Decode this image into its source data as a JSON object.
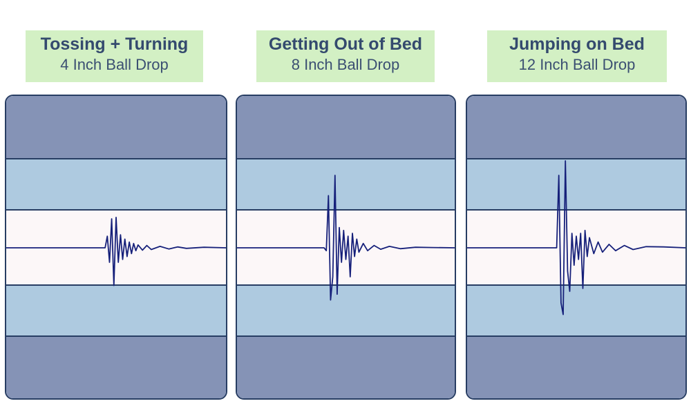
{
  "chart_data": [
    {
      "type": "line",
      "title": "Tossing + Turning",
      "subtitle": "4 Inch Ball Drop",
      "series": [
        {
          "values": [
            [
              0.0,
              0.0
            ],
            [
              0.45,
              0.0
            ],
            [
              0.46,
              0.4
            ],
            [
              0.47,
              -0.5
            ],
            [
              0.48,
              1.0
            ],
            [
              0.49,
              -1.3
            ],
            [
              0.5,
              1.05
            ],
            [
              0.51,
              -0.5
            ],
            [
              0.52,
              0.45
            ],
            [
              0.53,
              -0.4
            ],
            [
              0.54,
              0.3
            ],
            [
              0.55,
              -0.3
            ],
            [
              0.56,
              0.2
            ],
            [
              0.57,
              -0.2
            ],
            [
              0.58,
              0.15
            ],
            [
              0.59,
              -0.1
            ],
            [
              0.6,
              0.1
            ],
            [
              0.62,
              -0.08
            ],
            [
              0.64,
              0.08
            ],
            [
              0.66,
              -0.06
            ],
            [
              0.7,
              0.05
            ],
            [
              0.74,
              -0.04
            ],
            [
              0.78,
              0.03
            ],
            [
              0.82,
              -0.02
            ],
            [
              0.9,
              0.02
            ],
            [
              1.0,
              0.0
            ]
          ]
        }
      ]
    },
    {
      "type": "line",
      "title": "Getting Out of Bed",
      "subtitle": "8 Inch Ball Drop",
      "series": [
        {
          "values": [
            [
              0.0,
              0.0
            ],
            [
              0.4,
              0.0
            ],
            [
              0.41,
              -0.1
            ],
            [
              0.42,
              1.8
            ],
            [
              0.43,
              -1.8
            ],
            [
              0.44,
              -1.0
            ],
            [
              0.45,
              2.5
            ],
            [
              0.46,
              -1.6
            ],
            [
              0.47,
              0.7
            ],
            [
              0.48,
              -0.5
            ],
            [
              0.49,
              0.6
            ],
            [
              0.5,
              -0.4
            ],
            [
              0.51,
              0.4
            ],
            [
              0.52,
              -1.0
            ],
            [
              0.53,
              0.5
            ],
            [
              0.54,
              -0.3
            ],
            [
              0.55,
              0.3
            ],
            [
              0.56,
              -0.15
            ],
            [
              0.58,
              0.15
            ],
            [
              0.6,
              -0.1
            ],
            [
              0.63,
              0.08
            ],
            [
              0.66,
              -0.05
            ],
            [
              0.7,
              0.05
            ],
            [
              0.75,
              -0.03
            ],
            [
              0.82,
              0.02
            ],
            [
              0.9,
              0.01
            ],
            [
              1.0,
              0.0
            ]
          ]
        }
      ]
    },
    {
      "type": "line",
      "title": "Jumping on Bed",
      "subtitle": "12 Inch Ball Drop",
      "series": [
        {
          "values": [
            [
              0.0,
              0.0
            ],
            [
              0.41,
              0.0
            ],
            [
              0.42,
              2.5
            ],
            [
              0.43,
              -1.9
            ],
            [
              0.44,
              -2.3
            ],
            [
              0.45,
              3.0
            ],
            [
              0.46,
              -0.8
            ],
            [
              0.47,
              -1.5
            ],
            [
              0.48,
              0.5
            ],
            [
              0.49,
              -0.6
            ],
            [
              0.5,
              0.4
            ],
            [
              0.51,
              -0.4
            ],
            [
              0.52,
              0.5
            ],
            [
              0.53,
              -1.4
            ],
            [
              0.54,
              0.6
            ],
            [
              0.55,
              -0.3
            ],
            [
              0.56,
              0.35
            ],
            [
              0.58,
              -0.2
            ],
            [
              0.6,
              0.2
            ],
            [
              0.62,
              -0.15
            ],
            [
              0.65,
              0.12
            ],
            [
              0.68,
              -0.1
            ],
            [
              0.72,
              0.08
            ],
            [
              0.76,
              -0.06
            ],
            [
              0.82,
              0.04
            ],
            [
              0.9,
              0.03
            ],
            [
              1.0,
              0.0
            ]
          ]
        }
      ]
    }
  ],
  "colors": {
    "outer_band": "#8593b6",
    "inner_band": "#aecae0",
    "center_band": "#fcf7f8",
    "border": "#273d63",
    "trace": "#16207a",
    "label_bg": "#d3f0c4",
    "label_text": "#344a6e"
  }
}
